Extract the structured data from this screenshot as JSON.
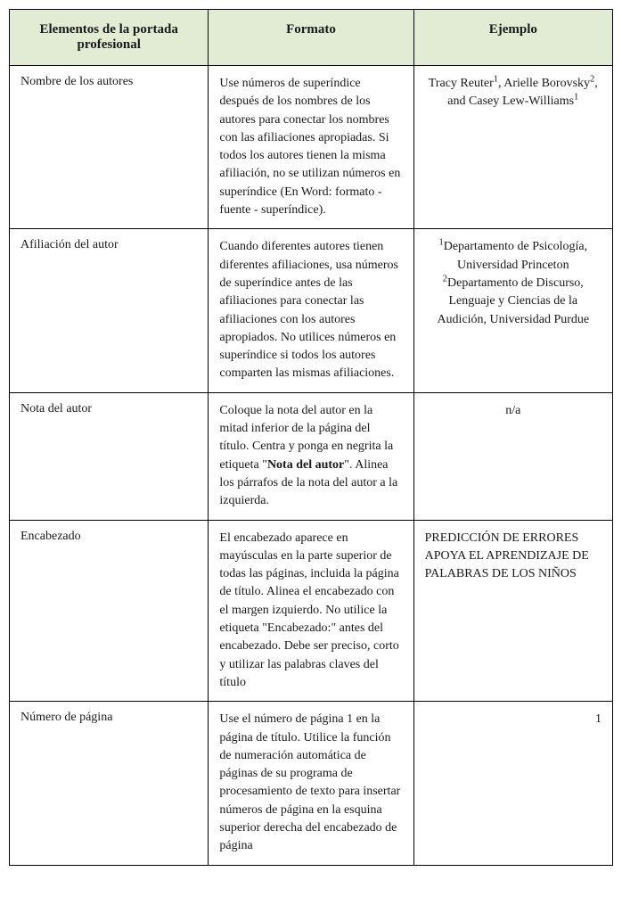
{
  "table": {
    "background_header": "#e2ebd3",
    "border_color": "#000000",
    "font_family": "Georgia, serif",
    "header_fontsize": 15,
    "body_fontsize": 14,
    "columns": [
      {
        "label": "Elementos de la portada profesional",
        "width_pct": 33
      },
      {
        "label": "Formato",
        "width_pct": 34
      },
      {
        "label": "Ejemplo",
        "width_pct": 33
      }
    ],
    "rows": [
      {
        "element": "Nombre de los autores",
        "format_plain": "Use números de superíndice después de los nombres de los autores para conectar los nombres con las afiliaciones apropiadas. Si todos los autores tienen la misma afiliación, no se utilizan números en superíndice (En Word: formato - fuente - superíndice).",
        "example_html": "Tracy Reuter<sup>1</sup>, Arielle Borovsky<sup>2</sup>, and Casey Lew-Williams<sup>1</sup>",
        "example_align": "center"
      },
      {
        "element": "Afiliación del autor",
        "format_plain": "Cuando diferentes autores tienen diferentes afiliaciones, usa números de superíndice antes de las afiliaciones para conectar las afiliaciones con los autores apropiados. No utilices números en superíndice si todos los autores comparten las mismas afiliaciones.",
        "example_html": "<sup>1</sup>Departamento de Psicología, Universidad Princeton<br><sup>2</sup>Departamento de Discurso, Lenguaje y Ciencias de la Audición, Universidad Purdue",
        "example_align": "center"
      },
      {
        "element": "Nota del autor",
        "format_html": "Coloque la nota del autor en la mitad inferior de la página del título. Centra y ponga en negrita la etiqueta \"<span class=\"bold\">Nota del autor</span>\". Alinea los párrafos de la nota del autor a la izquierda.",
        "example_plain": "n/a",
        "example_align": "center"
      },
      {
        "element": "Encabezado",
        "format_plain": "El encabezado aparece en mayúsculas en la parte superior de  todas las páginas, incluida la página de título. Alinea el encabezado con el margen izquierdo. No utilice la etiqueta \"Encabezado:\" antes del encabezado. Debe ser preciso, corto y utilizar las palabras claves del título",
        "example_plain": "PREDICCIÓN DE ERRORES APOYA EL APRENDIZAJE DE PALABRAS DE LOS NIÑOS",
        "example_align": "left"
      },
      {
        "element": "Número de página",
        "format_plain": "Use el número de página 1 en la página de título. Utilice la función de numeración automática de páginas de su programa de procesamiento de texto para insertar números de página en la esquina superior derecha del encabezado de página",
        "example_plain": "1",
        "example_align": "right"
      }
    ]
  }
}
